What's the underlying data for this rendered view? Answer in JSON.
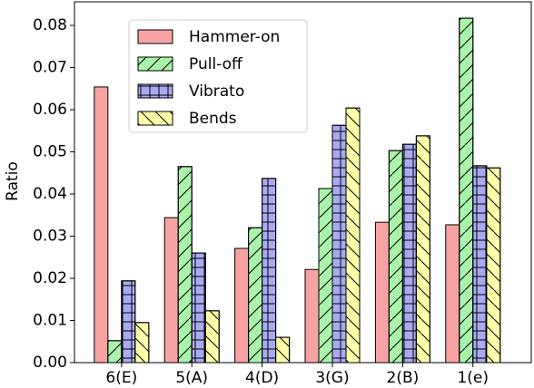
{
  "chart_data": {
    "type": "bar",
    "y_label": "Ratio",
    "categories": [
      "6(E)",
      "5(A)",
      "4(D)",
      "3(G)",
      "2(B)",
      "1(e)"
    ],
    "series": [
      {
        "name": "Hammer-on",
        "color": "#f7a3a3",
        "values": [
          0.0654,
          0.0344,
          0.0271,
          0.0221,
          0.0333,
          0.0327
        ]
      },
      {
        "name": "Pull-off",
        "color": "#aaf3aa",
        "hatch": "/",
        "values": [
          0.0052,
          0.0465,
          0.032,
          0.0413,
          0.0503,
          0.0817
        ]
      },
      {
        "name": "Vibrato",
        "color": "#aaaaf2",
        "hatch": "+",
        "values": [
          0.0194,
          0.026,
          0.0437,
          0.0563,
          0.0518,
          0.0467
        ]
      },
      {
        "name": "Bends",
        "color": "#ffffaa",
        "hatch": "\\",
        "values": [
          0.0095,
          0.0123,
          0.006,
          0.0604,
          0.0538,
          0.0462
        ]
      }
    ],
    "ylim": [
      0,
      0.0856
    ],
    "yticks": [
      {
        "value": 0,
        "label": "0.00"
      },
      0.01,
      0.02,
      0.03,
      0.04,
      0.05,
      0.06,
      0.07,
      0.08
    ],
    "legend": "upper-left"
  }
}
